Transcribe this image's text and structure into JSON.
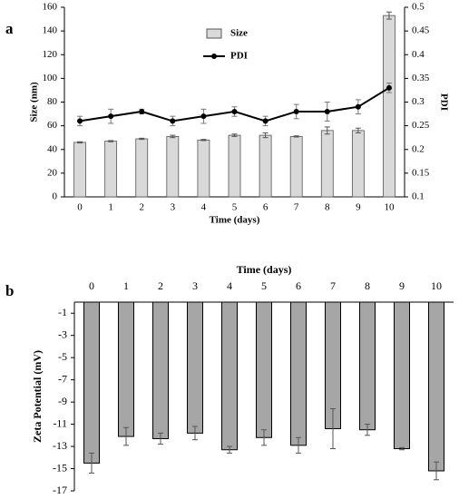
{
  "chart_data": [
    {
      "type": "combo",
      "panel_label": "a",
      "x_label": "Time (days)",
      "y_label": "Size (nm)",
      "y2_label": "PDI",
      "categories": [
        "0",
        "1",
        "2",
        "3",
        "4",
        "5",
        "6",
        "7",
        "8",
        "9",
        "10"
      ],
      "ylim": [
        0,
        160
      ],
      "yticks": [
        0,
        20,
        40,
        60,
        80,
        100,
        120,
        140,
        160
      ],
      "y2lim": [
        0.1,
        0.5
      ],
      "y2ticks": [
        0.1,
        0.15,
        0.2,
        0.25,
        0.3,
        0.35,
        0.4,
        0.45,
        0.5
      ],
      "series": [
        {
          "name": "Size",
          "type": "bar",
          "color": "#d9d9d9",
          "values": [
            46,
            47,
            49,
            51,
            48,
            52,
            52,
            51,
            56,
            56,
            153
          ],
          "errors": [
            0.5,
            0.5,
            0.5,
            1,
            0.5,
            1,
            2,
            0.5,
            3,
            2,
            3
          ]
        },
        {
          "name": "PDI",
          "type": "line",
          "axis": "y2",
          "color": "#000000",
          "values": [
            0.26,
            0.27,
            0.28,
            0.26,
            0.27,
            0.28,
            0.26,
            0.28,
            0.28,
            0.29,
            0.33
          ],
          "errors": [
            0.01,
            0.015,
            0.005,
            0.01,
            0.015,
            0.01,
            0.01,
            0.015,
            0.02,
            0.015,
            0.01
          ]
        }
      ]
    },
    {
      "type": "bar",
      "panel_label": "b",
      "x_label": "Time (days)",
      "y_label": "Zeta Potential (mV)",
      "categories": [
        "0",
        "1",
        "2",
        "3",
        "4",
        "5",
        "6",
        "7",
        "8",
        "9",
        "10"
      ],
      "ylim": [
        -17,
        0
      ],
      "yticks": [
        -1,
        -3,
        -5,
        -7,
        -9,
        -11,
        -13,
        -15,
        -17
      ],
      "series": [
        {
          "name": "Zeta Potential",
          "type": "bar",
          "color": "#a6a6a6",
          "values": [
            -14.5,
            -12.1,
            -12.3,
            -11.8,
            -13.3,
            -12.2,
            -12.9,
            -11.4,
            -11.5,
            -13.2,
            -15.2
          ],
          "errors": [
            0.9,
            0.8,
            0.5,
            0.6,
            0.3,
            0.7,
            0.7,
            1.8,
            0.5,
            0.1,
            0.8
          ]
        }
      ]
    }
  ]
}
